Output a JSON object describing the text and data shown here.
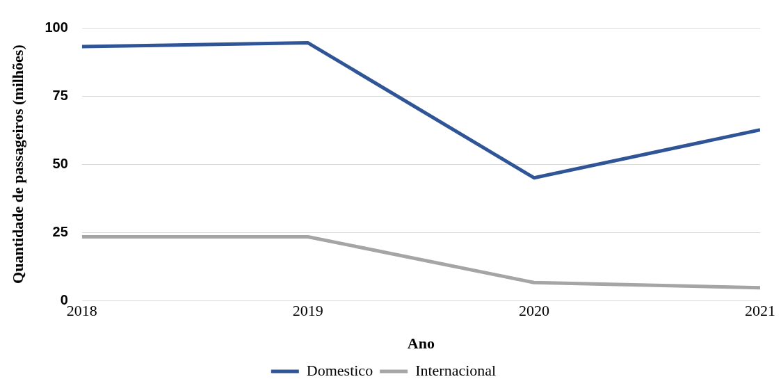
{
  "chart_data": {
    "type": "line",
    "xlabel": "Ano",
    "ylabel": "Quantidade de passageiros (milhões)",
    "x": [
      2018,
      2019,
      2020,
      2021
    ],
    "xlim": [
      2018,
      2021
    ],
    "xticks": [
      2018,
      2019,
      2020,
      2021
    ],
    "ylim": [
      0,
      100
    ],
    "yticks": [
      0,
      25,
      50,
      75,
      100
    ],
    "grid": "y",
    "legend": "bottom",
    "marker": "none",
    "line_style": "solid",
    "series": [
      {
        "name": "Domestico",
        "color": "#2f5597",
        "values": [
          93.1,
          94.5,
          45.0,
          62.6
        ]
      },
      {
        "name": "Internacional",
        "color": "#a5a5a5",
        "values": [
          23.4,
          23.4,
          6.6,
          4.7
        ]
      }
    ]
  }
}
